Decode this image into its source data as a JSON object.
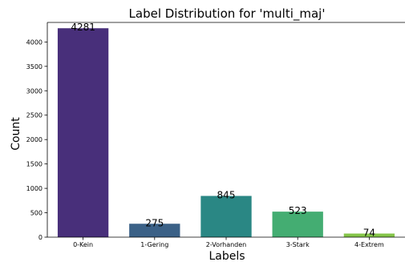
{
  "chart_data": {
    "type": "bar",
    "title": "Label Distribution for 'multi_maj'",
    "xlabel": "Labels",
    "ylabel": "Count",
    "categories": [
      "0-Kein",
      "1-Gering",
      "2-Vorhanden",
      "3-Stark",
      "4-Extrem"
    ],
    "values": [
      4281,
      275,
      845,
      523,
      74
    ],
    "colors": [
      "#482f7a",
      "#3b6187",
      "#2a8784",
      "#44ad72",
      "#85c54a"
    ],
    "ylim": [
      0,
      4400
    ],
    "yticks": [
      0,
      500,
      1000,
      1500,
      2000,
      2500,
      3000,
      3500,
      4000
    ],
    "grid": false,
    "data_labels": true
  }
}
